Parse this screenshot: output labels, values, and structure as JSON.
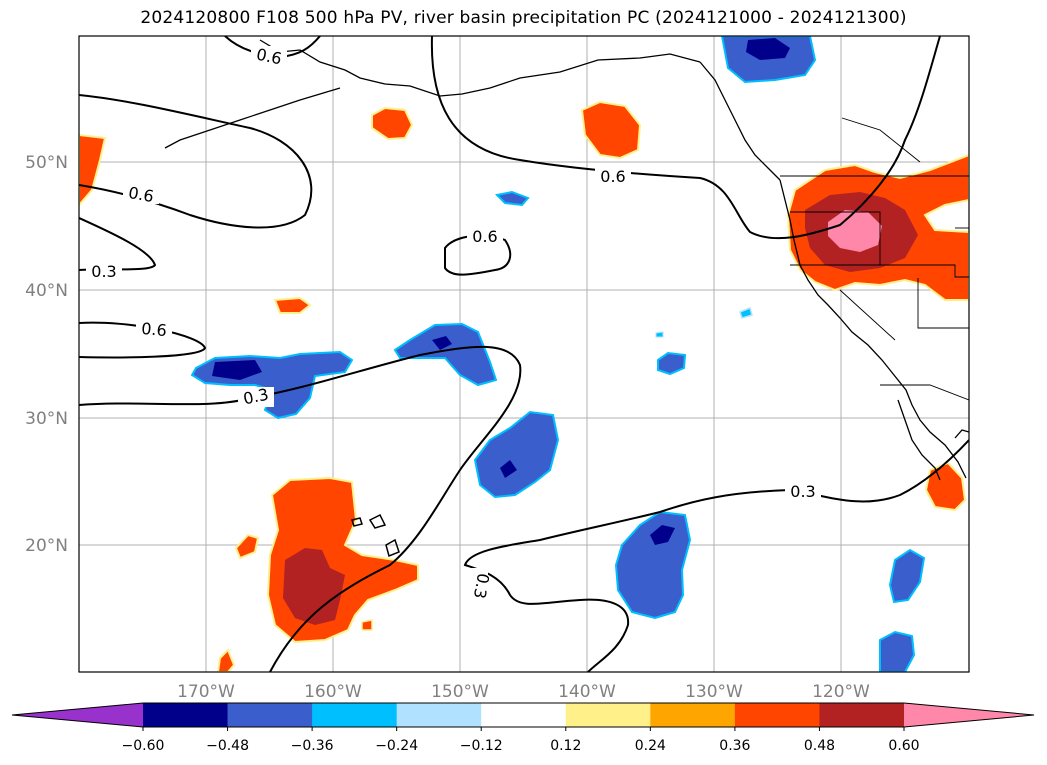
{
  "title": "2024120800 F108 500 hPa PV, river basin precipitation PC (2024121000 - 2024121300)",
  "map": {
    "lon_labels": [
      "170°W",
      "160°W",
      "150°W",
      "140°W",
      "130°W",
      "120°W"
    ],
    "lat_labels": [
      "50°N",
      "40°N",
      "30°N",
      "20°N"
    ],
    "contour_labels": [
      "0.6",
      "0.6",
      "0.6",
      "0.6",
      "0.6",
      "0.3",
      "0.3",
      "0.3",
      "0.3"
    ],
    "contour_color": "#000000",
    "coastline_color": "#000000"
  },
  "colorbar": {
    "ticks": [
      "−0.60",
      "−0.48",
      "−0.36",
      "−0.24",
      "−0.12",
      "0.12",
      "0.24",
      "0.36",
      "0.48",
      "0.60"
    ],
    "colors": [
      "#9932cc",
      "#00008b",
      "#3a5fcd",
      "#00bfff",
      "#b0e2ff",
      "#ffffff",
      "#fff08a",
      "#ffa500",
      "#ff4500",
      "#b22222",
      "#ff88aa"
    ]
  }
}
